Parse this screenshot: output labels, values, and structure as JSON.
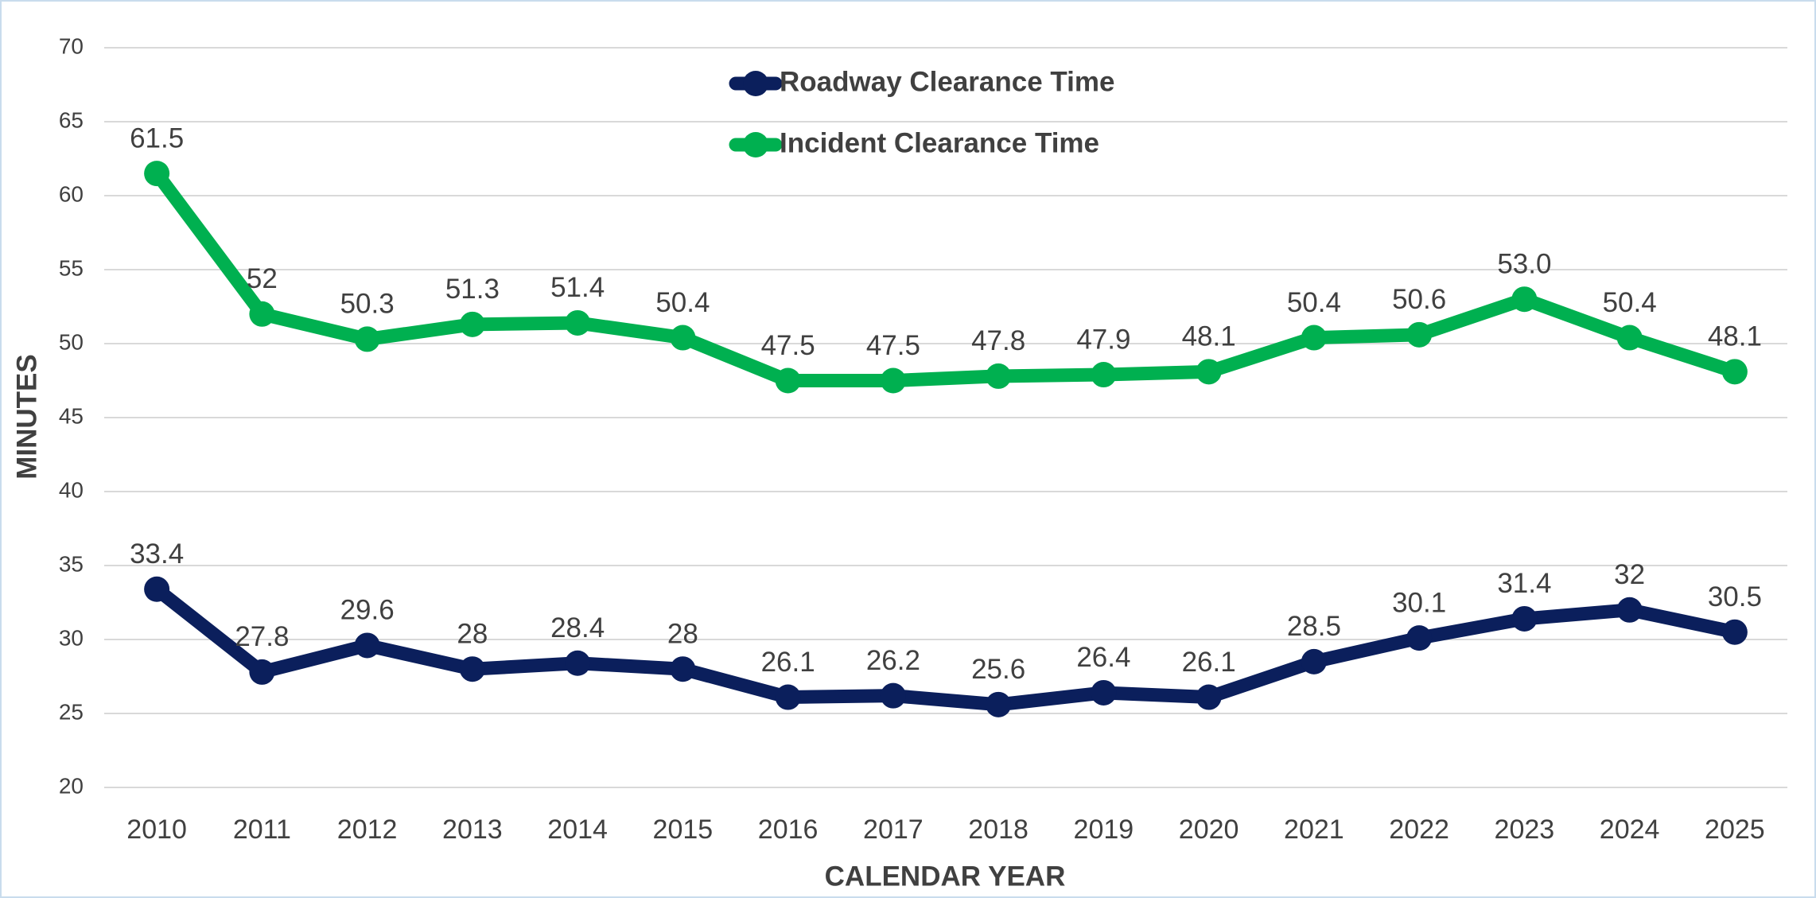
{
  "chart_data": {
    "type": "line",
    "categories": [
      "2010",
      "2011",
      "2012",
      "2013",
      "2014",
      "2015",
      "2016",
      "2017",
      "2018",
      "2019",
      "2020",
      "2021",
      "2022",
      "2023",
      "2024",
      "2025"
    ],
    "series": [
      {
        "name": "Roadway Clearance Time",
        "color": "#0b1f5c",
        "values": [
          33.4,
          27.8,
          29.6,
          28,
          28.4,
          28,
          26.1,
          26.2,
          25.6,
          26.4,
          26.1,
          28.5,
          30.1,
          31.4,
          32,
          30.5
        ],
        "value_labels": [
          "33.4",
          "27.8",
          "29.6",
          "28",
          "28.4",
          "28",
          "26.1",
          "26.2",
          "25.6",
          "26.4",
          "26.1",
          "28.5",
          "30.1",
          "31.4",
          "32",
          "30.5"
        ]
      },
      {
        "name": "Incident Clearance Time",
        "color": "#00b050",
        "values": [
          61.5,
          52,
          50.3,
          51.3,
          51.4,
          50.4,
          47.5,
          47.5,
          47.8,
          47.9,
          48.1,
          50.4,
          50.6,
          53.0,
          50.4,
          48.1
        ],
        "value_labels": [
          "61.5",
          "52",
          "50.3",
          "51.3",
          "51.4",
          "50.4",
          "47.5",
          "47.5",
          "47.8",
          "47.9",
          "48.1",
          "50.4",
          "50.6",
          "53.0",
          "50.4",
          "48.1"
        ]
      }
    ],
    "xlabel": "CALENDAR YEAR",
    "ylabel": "MINUTES",
    "ylim": [
      20,
      70
    ],
    "yticks": [
      20,
      25,
      30,
      35,
      40,
      45,
      50,
      55,
      60,
      65,
      70
    ],
    "grid": true,
    "legend": "top"
  }
}
